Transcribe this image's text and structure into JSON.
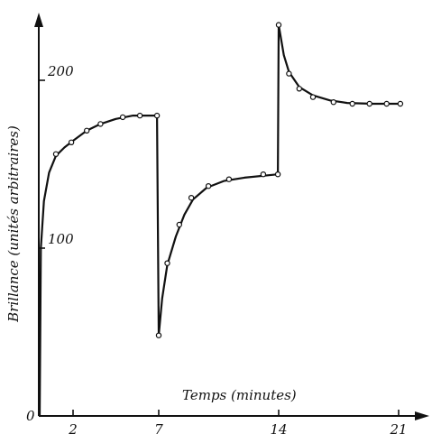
{
  "chart_data": {
    "type": "line",
    "xlabel": "Temps (minutes)",
    "ylabel": "Brillance (unités arbitraires)",
    "origin_label": "0",
    "x_ticks": [
      2,
      7,
      14,
      21
    ],
    "x_tick_labels": [
      "2",
      "7",
      "14",
      "21"
    ],
    "y_ticks": [
      100,
      200
    ],
    "y_tick_labels": [
      "100",
      "200"
    ],
    "xlim": [
      0,
      22.3
    ],
    "ylim": [
      0,
      240
    ],
    "grid": false,
    "series": [
      {
        "marker": "circle",
        "points": [
          {
            "x": 1.0,
            "y": 156
          },
          {
            "x": 1.9,
            "y": 163
          },
          {
            "x": 2.8,
            "y": 170
          },
          {
            "x": 3.6,
            "y": 174
          },
          {
            "x": 4.9,
            "y": 178
          },
          {
            "x": 5.9,
            "y": 179
          },
          {
            "x": 6.9,
            "y": 179
          },
          {
            "x": 7.0,
            "y": 48
          },
          {
            "x": 7.5,
            "y": 91
          },
          {
            "x": 8.2,
            "y": 114
          },
          {
            "x": 8.9,
            "y": 130
          },
          {
            "x": 9.9,
            "y": 137
          },
          {
            "x": 11.1,
            "y": 141
          },
          {
            "x": 13.1,
            "y": 144
          },
          {
            "x": 13.95,
            "y": 144
          },
          {
            "x": 14.0,
            "y": 233
          },
          {
            "x": 14.6,
            "y": 204
          },
          {
            "x": 15.2,
            "y": 195
          },
          {
            "x": 16.0,
            "y": 190
          },
          {
            "x": 17.2,
            "y": 187
          },
          {
            "x": 18.3,
            "y": 186
          },
          {
            "x": 19.3,
            "y": 186
          },
          {
            "x": 20.3,
            "y": 186
          },
          {
            "x": 21.1,
            "y": 186
          }
        ]
      }
    ],
    "curve": [
      [
        0.05,
        0
      ],
      [
        0.12,
        100
      ],
      [
        0.3,
        128
      ],
      [
        0.6,
        145
      ],
      [
        1.0,
        155
      ],
      [
        1.5,
        160
      ],
      [
        2.0,
        164
      ],
      [
        2.8,
        170
      ],
      [
        3.6,
        174
      ],
      [
        4.5,
        177
      ],
      [
        5.5,
        179
      ],
      [
        6.9,
        179
      ],
      [
        7.0,
        48
      ],
      [
        7.2,
        70
      ],
      [
        7.5,
        90
      ],
      [
        8.0,
        107
      ],
      [
        8.5,
        120
      ],
      [
        9.0,
        129
      ],
      [
        9.8,
        136
      ],
      [
        10.8,
        140
      ],
      [
        12.0,
        142
      ],
      [
        13.95,
        144
      ],
      [
        14.0,
        233
      ],
      [
        14.3,
        215
      ],
      [
        14.6,
        205
      ],
      [
        15.2,
        196
      ],
      [
        16.0,
        191
      ],
      [
        17.0,
        188
      ],
      [
        18.0,
        186.5
      ],
      [
        19.5,
        186
      ],
      [
        21.1,
        186
      ]
    ]
  }
}
